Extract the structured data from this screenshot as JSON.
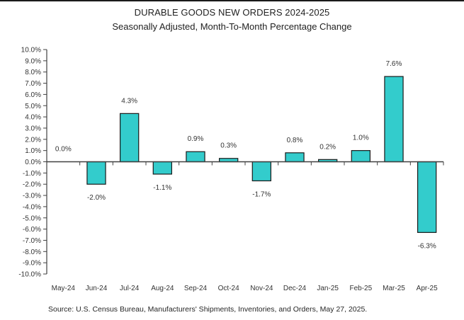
{
  "chart_data": {
    "type": "bar",
    "title": "DURABLE GOODS NEW ORDERS 2024-2025",
    "subtitle": "Seasonally Adjusted,  Month-To-Month Percentage Change",
    "xlabel": "",
    "ylabel": "",
    "ylim": [
      -10,
      10
    ],
    "ytick_step": 1,
    "ytick_format": "percent-1-decimal",
    "grid": false,
    "legend": "none",
    "categories": [
      "May-24",
      "Jun-24",
      "Jul-24",
      "Aug-24",
      "Sep-24",
      "Oct-24",
      "Nov-24",
      "Dec-24",
      "Jan-25",
      "Feb-25",
      "Mar-25",
      "Apr-25"
    ],
    "values": [
      0.0,
      -2.0,
      4.3,
      -1.1,
      0.9,
      0.3,
      -1.7,
      0.8,
      0.2,
      1.0,
      7.6,
      -6.3
    ],
    "data_labels": [
      "0.0%",
      "-2.0%",
      "4.3%",
      "-1.1%",
      "0.9%",
      "0.3%",
      "-1.7%",
      "0.8%",
      "0.2%",
      "1.0%",
      "7.6%",
      "-6.3%"
    ],
    "colors": {
      "bar_fill": "#33CCCC",
      "bar_stroke": "#1a1a1a",
      "axis": "#404040"
    },
    "source": "Source: U.S. Census Bureau, Manufacturers' Shipments, Inventories, and Orders, May 27, 2025."
  }
}
